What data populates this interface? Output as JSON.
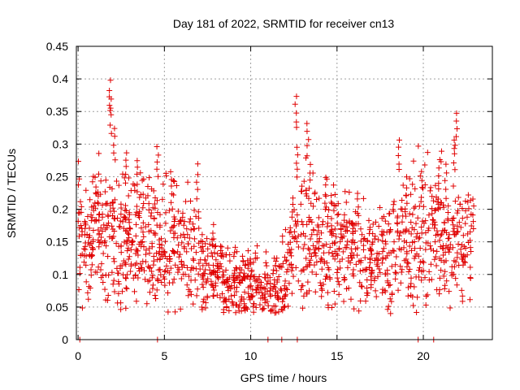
{
  "chart_data": {
    "type": "scatter",
    "title": "Day 181 of 2022, SRMTID for receiver cn13",
    "xlabel": "GPS time / hours",
    "ylabel": "SRMTID / TECUs",
    "xlim": [
      -0.1,
      24
    ],
    "ylim": [
      0,
      0.45
    ],
    "x_ticks": [
      0,
      5,
      10,
      15,
      20
    ],
    "x_tick_labels": [
      "0",
      "5",
      "10",
      "15",
      "20"
    ],
    "y_ticks": [
      0,
      0.05,
      0.1,
      0.15,
      0.2,
      0.25,
      0.3,
      0.35,
      0.4,
      0.45
    ],
    "y_tick_labels": [
      "0",
      "0.05",
      "0.1",
      "0.15",
      "0.2",
      "0.25",
      "0.3",
      "0.35",
      "0.4",
      "0.45"
    ],
    "grid": true,
    "marker": "plus",
    "series_color": "#e00000",
    "trend": [
      {
        "x": 0.0,
        "y": 0.17
      },
      {
        "x": 1.0,
        "y": 0.16
      },
      {
        "x": 2.0,
        "y": 0.15
      },
      {
        "x": 3.0,
        "y": 0.155
      },
      {
        "x": 4.0,
        "y": 0.15
      },
      {
        "x": 5.0,
        "y": 0.15
      },
      {
        "x": 6.0,
        "y": 0.14
      },
      {
        "x": 7.0,
        "y": 0.13
      },
      {
        "x": 8.0,
        "y": 0.09
      },
      {
        "x": 9.0,
        "y": 0.085
      },
      {
        "x": 10.0,
        "y": 0.085
      },
      {
        "x": 11.0,
        "y": 0.075
      },
      {
        "x": 12.0,
        "y": 0.09
      },
      {
        "x": 12.5,
        "y": 0.15
      },
      {
        "x": 13.0,
        "y": 0.16
      },
      {
        "x": 14.0,
        "y": 0.14
      },
      {
        "x": 15.0,
        "y": 0.15
      },
      {
        "x": 16.0,
        "y": 0.13
      },
      {
        "x": 17.0,
        "y": 0.12
      },
      {
        "x": 18.0,
        "y": 0.14
      },
      {
        "x": 19.0,
        "y": 0.16
      },
      {
        "x": 20.0,
        "y": 0.17
      },
      {
        "x": 21.0,
        "y": 0.16
      },
      {
        "x": 22.0,
        "y": 0.15
      },
      {
        "x": 22.8,
        "y": 0.14
      }
    ],
    "spikes": [
      {
        "x": 1.0,
        "y": 0.25
      },
      {
        "x": 1.85,
        "y": 0.4
      },
      {
        "x": 1.9,
        "y": 0.37
      },
      {
        "x": 2.1,
        "y": 0.325
      },
      {
        "x": 2.8,
        "y": 0.29
      },
      {
        "x": 3.4,
        "y": 0.28
      },
      {
        "x": 4.1,
        "y": 0.25
      },
      {
        "x": 4.6,
        "y": 0.3
      },
      {
        "x": 5.4,
        "y": 0.26
      },
      {
        "x": 6.9,
        "y": 0.27
      },
      {
        "x": 7.8,
        "y": 0.18
      },
      {
        "x": 12.6,
        "y": 0.375
      },
      {
        "x": 12.7,
        "y": 0.3
      },
      {
        "x": 13.3,
        "y": 0.335
      },
      {
        "x": 13.4,
        "y": 0.27
      },
      {
        "x": 14.3,
        "y": 0.25
      },
      {
        "x": 16.2,
        "y": 0.23
      },
      {
        "x": 18.6,
        "y": 0.31
      },
      {
        "x": 19.0,
        "y": 0.25
      },
      {
        "x": 19.9,
        "y": 0.26
      },
      {
        "x": 20.9,
        "y": 0.28
      },
      {
        "x": 21.3,
        "y": 0.27
      },
      {
        "x": 21.9,
        "y": 0.35
      },
      {
        "x": 21.8,
        "y": 0.31
      },
      {
        "x": 22.9,
        "y": 0.22
      }
    ],
    "zero_points": [
      0.1,
      4.6,
      11.0,
      11.8,
      12.7,
      19.7,
      20.6
    ]
  }
}
